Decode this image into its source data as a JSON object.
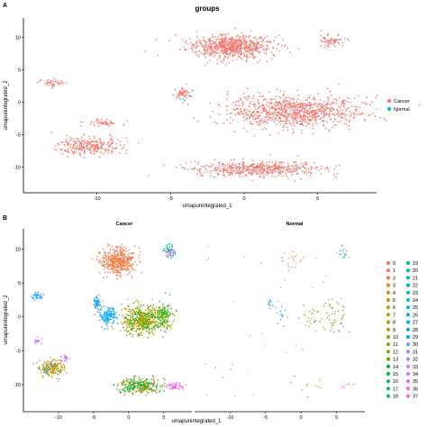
{
  "panel_labels": [
    "A",
    "B"
  ],
  "chart_data": [
    {
      "type": "scatter",
      "panel": "A",
      "title": "groups",
      "xlabel": "umapunintegrated_1",
      "ylabel": "umapunintegrated_2",
      "xlim": [
        -15,
        9
      ],
      "ylim": [
        -14,
        13
      ],
      "x_ticks": [
        -10,
        -5,
        0,
        5
      ],
      "y_ticks": [
        10,
        5,
        0,
        -5,
        -10
      ],
      "grid": false,
      "legend_position": "right",
      "series": [
        {
          "name": "Cancer",
          "color": "#F8766D"
        },
        {
          "name": "Normal",
          "color": "#00BFC4"
        }
      ],
      "clusters": [
        {
          "label": "top center island",
          "x": -1.0,
          "y": 8.6,
          "sx": 2.6,
          "sy": 1.6,
          "n": 700,
          "normal_share": 0.01
        },
        {
          "label": "top right small island",
          "x": 6.0,
          "y": 9.5,
          "sx": 0.9,
          "sy": 0.8,
          "n": 60,
          "normal_share": 0.05
        },
        {
          "label": "central band",
          "x": 3.5,
          "y": -1.5,
          "sx": 4.0,
          "sy": 2.3,
          "n": 900,
          "normal_share": 0.02
        },
        {
          "label": "small center-left group",
          "x": -4.2,
          "y": 1.3,
          "sx": 0.5,
          "sy": 0.9,
          "n": 60,
          "normal_share": 0.12
        },
        {
          "label": "bottom band",
          "x": 1.0,
          "y": -10.3,
          "sx": 4.0,
          "sy": 1.1,
          "n": 500,
          "normal_share": 0.02
        },
        {
          "label": "left island",
          "x": -10.5,
          "y": -6.8,
          "sx": 2.0,
          "sy": 1.2,
          "n": 260,
          "normal_share": 0.03
        },
        {
          "label": "left small pieces",
          "x": -9.5,
          "y": -3.2,
          "sx": 1.2,
          "sy": 0.4,
          "n": 50,
          "normal_share": 0.0
        },
        {
          "label": "far-left small group",
          "x": -13.0,
          "y": 3.0,
          "sx": 0.8,
          "sy": 0.5,
          "n": 40,
          "normal_share": 0.0
        }
      ]
    },
    {
      "type": "scatter",
      "panel": "B",
      "facets": [
        "Cancer",
        "Normal"
      ],
      "xlabel": "umapunintegrated_1",
      "ylabel": "umapunintegrated_2",
      "xlim": [
        -15,
        9
      ],
      "ylim": [
        -14,
        13
      ],
      "x_ticks": [
        -10,
        -5,
        0,
        5
      ],
      "y_ticks": [
        10,
        5,
        0,
        -5,
        -10
      ],
      "grid": false,
      "legend_position": "right",
      "legend": [
        "0",
        "1",
        "2",
        "3",
        "4",
        "5",
        "6",
        "7",
        "8",
        "9",
        "10",
        "11",
        "12",
        "13",
        "14",
        "15",
        "16",
        "17",
        "18",
        "19",
        "20",
        "21",
        "22",
        "23",
        "24",
        "25",
        "26",
        "27",
        "28",
        "29",
        "30",
        "31",
        "32",
        "33",
        "34",
        "35",
        "36",
        "37"
      ],
      "colors": [
        "#F8766D",
        "#F37B59",
        "#ED8141",
        "#E7861B",
        "#DE8C00",
        "#D59100",
        "#CB9600",
        "#C09B00",
        "#B3A000",
        "#A5A400",
        "#95A900",
        "#81AD00",
        "#6BB100",
        "#4BB400",
        "#00B813",
        "#00BA42",
        "#00BC59",
        "#00BE6C",
        "#00C07E",
        "#00C18F",
        "#00C19F",
        "#00C1AF",
        "#00C0BE",
        "#00BECC",
        "#00BCD8",
        "#00B8E4",
        "#00B4EF",
        "#00AFF8",
        "#00A9FF",
        "#00A2FF",
        "#619CFF",
        "#8F91FF",
        "#AF87FF",
        "#C77CFF",
        "#D973FC",
        "#E76BF3",
        "#F265E7",
        "#FA62DA"
      ],
      "clusters": [
        {
          "x": -1.5,
          "y": 8.2,
          "sx": 2.2,
          "sy": 1.7,
          "n": 420,
          "ids": [
            0,
            1,
            2,
            3
          ],
          "normal_share": 0.05
        },
        {
          "x": 5.9,
          "y": 9.7,
          "sx": 0.7,
          "sy": 0.8,
          "n": 60,
          "ids": [
            19,
            20,
            35
          ],
          "normal_share": 0.25
        },
        {
          "x": 2.0,
          "y": -0.5,
          "sx": 2.6,
          "sy": 2.0,
          "n": 500,
          "ids": [
            5,
            6,
            7,
            8,
            9,
            12,
            14,
            15
          ],
          "normal_share": 0.06
        },
        {
          "x": -3.0,
          "y": 0.2,
          "sx": 1.0,
          "sy": 1.3,
          "n": 110,
          "ids": [
            27,
            28,
            29
          ],
          "normal_share": 0.12
        },
        {
          "x": -4.5,
          "y": 2.0,
          "sx": 0.4,
          "sy": 0.8,
          "n": 50,
          "ids": [
            29,
            30
          ],
          "normal_share": 0.2
        },
        {
          "x": 5.0,
          "y": 0.0,
          "sx": 1.3,
          "sy": 1.8,
          "n": 150,
          "ids": [
            11,
            12,
            13,
            16
          ],
          "normal_share": 0.25
        },
        {
          "x": -11.0,
          "y": -7.5,
          "sx": 1.6,
          "sy": 1.2,
          "n": 190,
          "ids": [
            4,
            5,
            6,
            7,
            26
          ],
          "normal_share": 0.02
        },
        {
          "x": 1.5,
          "y": -10.2,
          "sx": 2.8,
          "sy": 1.0,
          "n": 300,
          "ids": [
            3,
            4,
            13,
            15,
            17
          ],
          "normal_share": 0.03
        },
        {
          "x": 6.5,
          "y": -10.2,
          "sx": 1.0,
          "sy": 0.5,
          "n": 45,
          "ids": [
            35,
            36,
            37
          ],
          "normal_share": 0.15
        },
        {
          "x": -13.0,
          "y": 3.0,
          "sx": 0.7,
          "sy": 0.5,
          "n": 35,
          "ids": [
            28,
            29,
            30
          ],
          "normal_share": 0.0
        },
        {
          "x": -13.0,
          "y": -3.5,
          "sx": 0.5,
          "sy": 0.4,
          "n": 20,
          "ids": [
            33,
            34
          ],
          "normal_share": 0.0
        },
        {
          "x": -9.0,
          "y": -6.0,
          "sx": 0.5,
          "sy": 0.4,
          "n": 20,
          "ids": [
            33,
            34
          ],
          "normal_share": 0.0
        }
      ]
    }
  ]
}
